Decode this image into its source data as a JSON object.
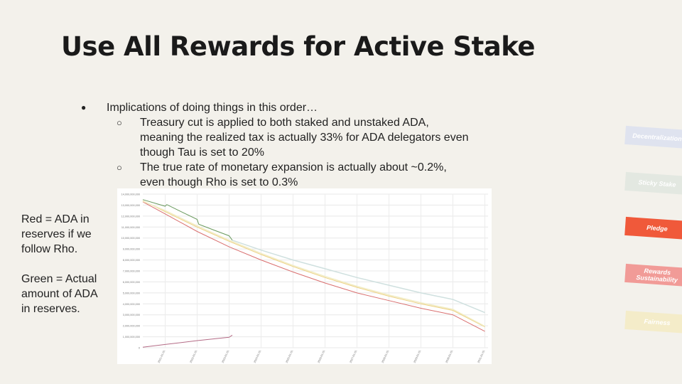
{
  "slide": {
    "title": "Use All Rewards for Active Stake",
    "bullet_main": "Implications of doing things in this order…",
    "sub_bullets": [
      "Treasury cut is applied to both staked and unstaked ADA, meaning the realized tax is actually 33% for ADA delegators even though Tau is set to 20%",
      "The true rate of monetary expansion is actually about ~0.2%, even though Rho is set to 0.3%"
    ],
    "note_red": "Red = ADA in reserves if we follow Rho.",
    "note_green": "Green = Actual amount of ADA in reserves."
  },
  "side_tags": [
    {
      "label": "Decentralization",
      "color": "#dfe3ef",
      "text_color": "#ffffff"
    },
    {
      "label": "Sticky Stake",
      "color": "#e3e8e1",
      "text_color": "#ffffff"
    },
    {
      "label": "Pledge",
      "color": "#f0593a",
      "text_color": "#ffffff"
    },
    {
      "label": "Rewards Sustainability",
      "color": "#f19b97",
      "text_color": "#ffffff"
    },
    {
      "label": "Fairness",
      "color": "#f4ecc9",
      "text_color": "#ffffff"
    }
  ],
  "chart_data": {
    "type": "line",
    "ylim": [
      0,
      14000000000
    ],
    "y_ticks": [
      "0",
      "1,000,000,000",
      "2,000,000,000",
      "3,000,000,000",
      "4,000,000,000",
      "5,000,000,000",
      "6,000,000,000",
      "7,000,000,000",
      "8,000,000,000",
      "9,000,000,000",
      "10,000,000,000",
      "11,000,000,000",
      "12,000,000,000",
      "13,000,000,000",
      "14,000,000,000"
    ],
    "x_ticks": [
      "2021-01-01",
      "2022-01-01",
      "2023-01-01",
      "2024-01-01",
      "2025-01-01",
      "2026-01-01",
      "2027-01-01",
      "2028-01-01",
      "2029-01-01",
      "2030-01-01",
      "2031-01-01"
    ],
    "x_domain": [
      2020.3,
      2031.1
    ],
    "series": [
      {
        "name": "",
        "color": "#d96e6e",
        "width": 1,
        "points": [
          [
            2020.3,
            13300000000
          ],
          [
            2021,
            12200000000
          ],
          [
            2022,
            10600000000
          ],
          [
            2023,
            9200000000
          ],
          [
            2024,
            8000000000
          ],
          [
            2025,
            6900000000
          ],
          [
            2026,
            5900000000
          ],
          [
            2027,
            5000000000
          ],
          [
            2028,
            4300000000
          ],
          [
            2029,
            3600000000
          ],
          [
            2030,
            3000000000
          ],
          [
            2031,
            1500000000
          ]
        ]
      },
      {
        "name": "",
        "color": "#ecd080",
        "width": 1,
        "points": [
          [
            2020.3,
            13400000000
          ],
          [
            2021,
            12400000000
          ],
          [
            2022,
            11000000000
          ],
          [
            2023,
            9700000000
          ],
          [
            2024,
            8500000000
          ],
          [
            2025,
            7400000000
          ],
          [
            2026,
            6400000000
          ],
          [
            2027,
            5500000000
          ],
          [
            2028,
            4700000000
          ],
          [
            2029,
            4000000000
          ],
          [
            2030,
            3400000000
          ],
          [
            2031,
            1900000000
          ]
        ]
      },
      {
        "name": "",
        "color": "#f1ecc4",
        "width": 1.5,
        "points": [
          [
            2020.3,
            13350000000
          ],
          [
            2021,
            12500000000
          ],
          [
            2022,
            11100000000
          ],
          [
            2023,
            9800000000
          ],
          [
            2024,
            8600000000
          ],
          [
            2025,
            7500000000
          ],
          [
            2026,
            6500000000
          ],
          [
            2027,
            5600000000
          ],
          [
            2028,
            4800000000
          ],
          [
            2029,
            4100000000
          ],
          [
            2030,
            3500000000
          ],
          [
            2031,
            1950000000
          ]
        ]
      },
      {
        "name": "",
        "color": "#6a9a5e",
        "width": 1,
        "points": [
          [
            2020.3,
            13500000000
          ],
          [
            2021,
            12900000000
          ],
          [
            2021.05,
            13050000000
          ],
          [
            2021.5,
            12400000000
          ],
          [
            2022,
            11700000000
          ],
          [
            2022.05,
            11250000000
          ],
          [
            2022.5,
            10750000000
          ],
          [
            2023,
            10200000000
          ],
          [
            2023.1,
            9800000000
          ]
        ]
      },
      {
        "name": "",
        "color": "#cfe0df",
        "width": 1.5,
        "points": [
          [
            2023.1,
            9800000000
          ],
          [
            2024,
            8900000000
          ],
          [
            2025,
            8000000000
          ],
          [
            2026,
            7200000000
          ],
          [
            2027,
            6400000000
          ],
          [
            2028,
            5700000000
          ],
          [
            2029,
            5000000000
          ],
          [
            2030,
            4400000000
          ],
          [
            2031,
            3200000000
          ]
        ]
      },
      {
        "name": "",
        "color": "#b46b86",
        "width": 1,
        "points": [
          [
            2020.3,
            50000000
          ],
          [
            2021,
            300000000
          ],
          [
            2022,
            650000000
          ],
          [
            2023,
            950000000
          ],
          [
            2023.1,
            1150000000
          ]
        ]
      }
    ]
  }
}
